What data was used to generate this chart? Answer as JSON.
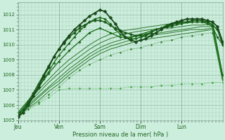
{
  "background_color": "#cceedd",
  "grid_color_minor": "#aaccbb",
  "grid_color_major": "#99bbaa",
  "xlabel": "Pression niveau de la mer( hPa )",
  "ylim": [
    1005.0,
    1012.8
  ],
  "yticks": [
    1005,
    1006,
    1007,
    1008,
    1009,
    1010,
    1011,
    1012
  ],
  "xtick_labels": [
    "Jeu",
    "Ven",
    "Sam",
    "Dim",
    "Lun"
  ],
  "xtick_positions": [
    0,
    24,
    48,
    72,
    96
  ],
  "xmin": 0,
  "xmax": 120,
  "tick_color": "#226622",
  "label_color": "#226622",
  "lines": [
    {
      "x": [
        0,
        6,
        12,
        18,
        24,
        30,
        36,
        42,
        48,
        54,
        60,
        66,
        72,
        78,
        84,
        90,
        96,
        102,
        108,
        114,
        120
      ],
      "y": [
        1005.3,
        1005.7,
        1006.1,
        1006.5,
        1007.0,
        1007.1,
        1007.1,
        1007.1,
        1007.1,
        1007.1,
        1007.1,
        1007.2,
        1007.2,
        1007.2,
        1007.3,
        1007.3,
        1007.4,
        1007.4,
        1007.4,
        1007.5,
        1007.5
      ],
      "style": "dotted",
      "color": "#4aaa4a",
      "lw": 0.7,
      "marker": "D",
      "markersize": 1.5,
      "zorder": 2
    },
    {
      "x": [
        0,
        6,
        12,
        18,
        24,
        30,
        36,
        42,
        48,
        54,
        60,
        66,
        72,
        78,
        84,
        90,
        96,
        102,
        108,
        114,
        120
      ],
      "y": [
        1005.3,
        1005.7,
        1006.2,
        1006.7,
        1007.2,
        1007.8,
        1008.3,
        1008.7,
        1009.0,
        1009.3,
        1009.5,
        1009.7,
        1009.8,
        1010.0,
        1010.2,
        1010.3,
        1010.5,
        1010.6,
        1010.7,
        1010.8,
        1007.7
      ],
      "style": "dotted",
      "color": "#3a8a3a",
      "lw": 0.7,
      "marker": "D",
      "markersize": 1.5,
      "zorder": 2
    },
    {
      "x": [
        0,
        6,
        12,
        18,
        24,
        30,
        36,
        42,
        48,
        54,
        60,
        66,
        72,
        78,
        84,
        90,
        96,
        102,
        108,
        114,
        120
      ],
      "y": [
        1005.3,
        1005.8,
        1006.3,
        1006.9,
        1007.4,
        1008.0,
        1008.5,
        1009.0,
        1009.4,
        1009.7,
        1009.9,
        1010.1,
        1010.3,
        1010.4,
        1010.5,
        1010.6,
        1010.7,
        1010.8,
        1010.9,
        1011.0,
        1007.6
      ],
      "style": "solid",
      "color": "#2a7a2a",
      "lw": 0.7,
      "zorder": 2
    },
    {
      "x": [
        0,
        6,
        12,
        18,
        24,
        30,
        36,
        42,
        48,
        54,
        60,
        66,
        72,
        78,
        84,
        90,
        96,
        102,
        108,
        114,
        120
      ],
      "y": [
        1005.3,
        1005.9,
        1006.5,
        1007.1,
        1007.6,
        1008.2,
        1008.7,
        1009.2,
        1009.6,
        1009.9,
        1010.1,
        1010.3,
        1010.5,
        1010.6,
        1010.7,
        1010.8,
        1010.9,
        1011.0,
        1011.0,
        1011.1,
        1007.7
      ],
      "style": "solid",
      "color": "#2a7a2a",
      "lw": 0.7,
      "zorder": 2
    },
    {
      "x": [
        0,
        6,
        12,
        18,
        24,
        30,
        36,
        42,
        48,
        54,
        60,
        66,
        72,
        78,
        84,
        90,
        96,
        102,
        108,
        114,
        120
      ],
      "y": [
        1005.4,
        1006.0,
        1006.6,
        1007.2,
        1007.8,
        1008.4,
        1008.9,
        1009.4,
        1009.8,
        1010.1,
        1010.3,
        1010.5,
        1010.6,
        1010.7,
        1010.8,
        1010.9,
        1011.0,
        1011.1,
        1011.2,
        1011.2,
        1007.8
      ],
      "style": "solid",
      "color": "#2a7a2a",
      "lw": 0.7,
      "zorder": 2
    },
    {
      "x": [
        0,
        6,
        12,
        18,
        24,
        30,
        36,
        42,
        48,
        54,
        60,
        66,
        72,
        78,
        84,
        90,
        96,
        102,
        108,
        114,
        120
      ],
      "y": [
        1005.4,
        1006.1,
        1006.8,
        1007.5,
        1008.1,
        1008.7,
        1009.2,
        1009.7,
        1010.1,
        1010.4,
        1010.6,
        1010.8,
        1010.9,
        1011.0,
        1011.1,
        1011.1,
        1011.2,
        1011.3,
        1011.3,
        1011.4,
        1007.9
      ],
      "style": "solid",
      "color": "#2a7a2a",
      "lw": 0.7,
      "zorder": 2
    },
    {
      "x": [
        0,
        6,
        12,
        18,
        24,
        30,
        36,
        42,
        48,
        54,
        60,
        66,
        72,
        78,
        84,
        90,
        96,
        102,
        108,
        114,
        120
      ],
      "y": [
        1005.5,
        1006.2,
        1007.0,
        1007.7,
        1008.4,
        1009.0,
        1009.5,
        1010.0,
        1010.4,
        1010.7,
        1010.9,
        1011.0,
        1011.1,
        1011.2,
        1011.3,
        1011.4,
        1011.4,
        1011.5,
        1011.5,
        1011.5,
        1008.0
      ],
      "style": "solid",
      "color": "#2a7a2a",
      "lw": 0.7,
      "zorder": 2
    },
    {
      "x": [
        0,
        6,
        12,
        18,
        24,
        30,
        36,
        42,
        48,
        54,
        60,
        66,
        72,
        78,
        84,
        90,
        96,
        102,
        108,
        114,
        120
      ],
      "y": [
        1005.5,
        1006.3,
        1007.2,
        1008.1,
        1008.9,
        1009.6,
        1010.2,
        1010.8,
        1011.1,
        1010.8,
        1010.5,
        1010.5,
        1010.7,
        1010.9,
        1011.1,
        1011.2,
        1011.4,
        1011.5,
        1011.5,
        1011.5,
        1008.0
      ],
      "style": "solid",
      "color": "#1a6a1a",
      "lw": 0.9,
      "marker": "D",
      "markersize": 1.8,
      "zorder": 3
    },
    {
      "x": [
        0,
        3,
        6,
        9,
        12,
        15,
        18,
        21,
        24,
        27,
        30,
        33,
        36,
        39,
        42,
        45,
        48,
        51,
        54,
        57,
        60,
        63,
        66,
        69,
        72,
        75,
        78,
        81,
        84,
        87,
        90,
        93,
        96,
        99,
        102,
        105,
        108,
        111,
        114,
        117,
        120
      ],
      "y": [
        1005.4,
        1005.7,
        1006.1,
        1006.6,
        1007.1,
        1007.7,
        1008.2,
        1008.8,
        1009.3,
        1009.7,
        1010.1,
        1010.5,
        1010.9,
        1011.2,
        1011.5,
        1011.7,
        1011.8,
        1011.7,
        1011.4,
        1011.0,
        1010.7,
        1010.5,
        1010.4,
        1010.4,
        1010.5,
        1010.6,
        1010.8,
        1011.0,
        1011.1,
        1011.3,
        1011.4,
        1011.5,
        1011.5,
        1011.5,
        1011.5,
        1011.5,
        1011.5,
        1011.4,
        1011.2,
        1010.5,
        1010.0
      ],
      "style": "solid",
      "color": "#1a6a1a",
      "lw": 0.9,
      "marker": "D",
      "markersize": 1.8,
      "zorder": 3
    },
    {
      "x": [
        0,
        3,
        6,
        9,
        12,
        15,
        18,
        21,
        24,
        27,
        30,
        33,
        36,
        39,
        42,
        45,
        48,
        51,
        54,
        57,
        60,
        63,
        66,
        69,
        72,
        75,
        78,
        81,
        84,
        87,
        90,
        93,
        96,
        99,
        102,
        105,
        108,
        111,
        114,
        117,
        120
      ],
      "y": [
        1005.2,
        1005.5,
        1006.0,
        1006.6,
        1007.2,
        1007.9,
        1008.5,
        1009.2,
        1009.7,
        1010.2,
        1010.6,
        1011.0,
        1011.3,
        1011.6,
        1011.9,
        1012.1,
        1012.3,
        1012.2,
        1011.8,
        1011.4,
        1010.9,
        1010.5,
        1010.3,
        1010.2,
        1010.3,
        1010.4,
        1010.6,
        1010.8,
        1011.0,
        1011.2,
        1011.4,
        1011.5,
        1011.6,
        1011.7,
        1011.7,
        1011.7,
        1011.7,
        1011.6,
        1011.5,
        1011.2,
        1010.2
      ],
      "style": "solid",
      "color": "#1a4a1a",
      "lw": 1.3,
      "marker": "D",
      "markersize": 2.5,
      "zorder": 5
    },
    {
      "x": [
        0,
        3,
        6,
        9,
        12,
        15,
        18,
        21,
        24,
        27,
        30,
        33,
        36,
        39,
        42,
        45,
        48,
        51,
        54,
        57,
        60,
        63,
        66,
        69,
        72,
        75,
        78,
        81,
        84,
        87,
        90,
        93,
        96,
        99,
        102,
        105,
        108,
        111,
        114,
        117,
        120
      ],
      "y": [
        1005.3,
        1005.7,
        1006.2,
        1006.8,
        1007.4,
        1008.0,
        1008.6,
        1009.2,
        1009.7,
        1010.1,
        1010.5,
        1010.8,
        1011.1,
        1011.3,
        1011.5,
        1011.6,
        1011.6,
        1011.5,
        1011.3,
        1011.1,
        1010.9,
        1010.8,
        1010.7,
        1010.6,
        1010.6,
        1010.7,
        1010.8,
        1011.0,
        1011.1,
        1011.2,
        1011.3,
        1011.4,
        1011.5,
        1011.5,
        1011.6,
        1011.6,
        1011.6,
        1011.5,
        1011.3,
        1011.0,
        1010.0
      ],
      "style": "solid",
      "color": "#1a5a1a",
      "lw": 1.1,
      "marker": "D",
      "markersize": 2.2,
      "zorder": 4
    }
  ]
}
